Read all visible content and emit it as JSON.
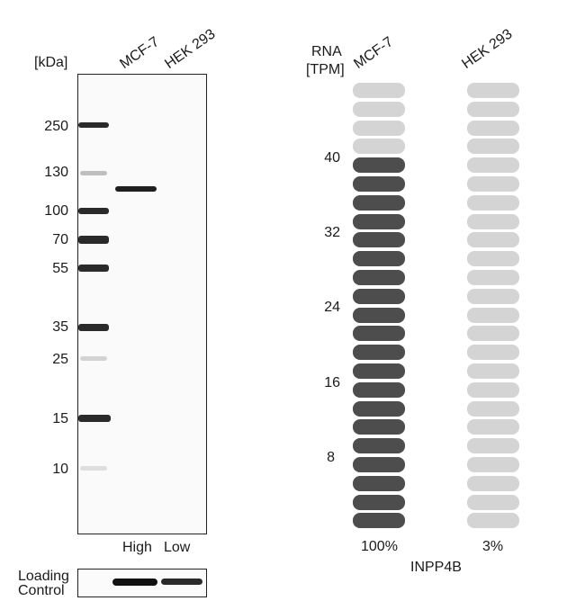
{
  "western_blot": {
    "unit_label": "[kDa]",
    "lane_labels": [
      "MCF-7",
      "HEK 293"
    ],
    "markers": [
      "250",
      "130",
      "100",
      "70",
      "55",
      "35",
      "25",
      "15",
      "10"
    ],
    "expression_levels": [
      "High",
      "Low"
    ],
    "loading_control_label": [
      "Loading",
      "Control"
    ]
  },
  "rna_panel": {
    "axis_title": [
      "RNA",
      "[TPM]"
    ],
    "column_labels": [
      "MCF-7",
      "HEK 293"
    ],
    "ticks": [
      "40",
      "32",
      "24",
      "16",
      "8"
    ],
    "percentages": [
      "100%",
      "3%"
    ],
    "gene": "INPP4B"
  },
  "chart_data": {
    "type": "bar",
    "categories": [
      "MCF-7",
      "HEK 293"
    ],
    "units": "TPM",
    "filled_segments": [
      20,
      0
    ],
    "total_segments": 24,
    "percent": [
      100,
      3
    ],
    "ytick_labels": [
      "40",
      "32",
      "24",
      "16",
      "8"
    ],
    "colors": {
      "filled": "#4d4d4d",
      "empty": "#d4d4d4"
    }
  }
}
